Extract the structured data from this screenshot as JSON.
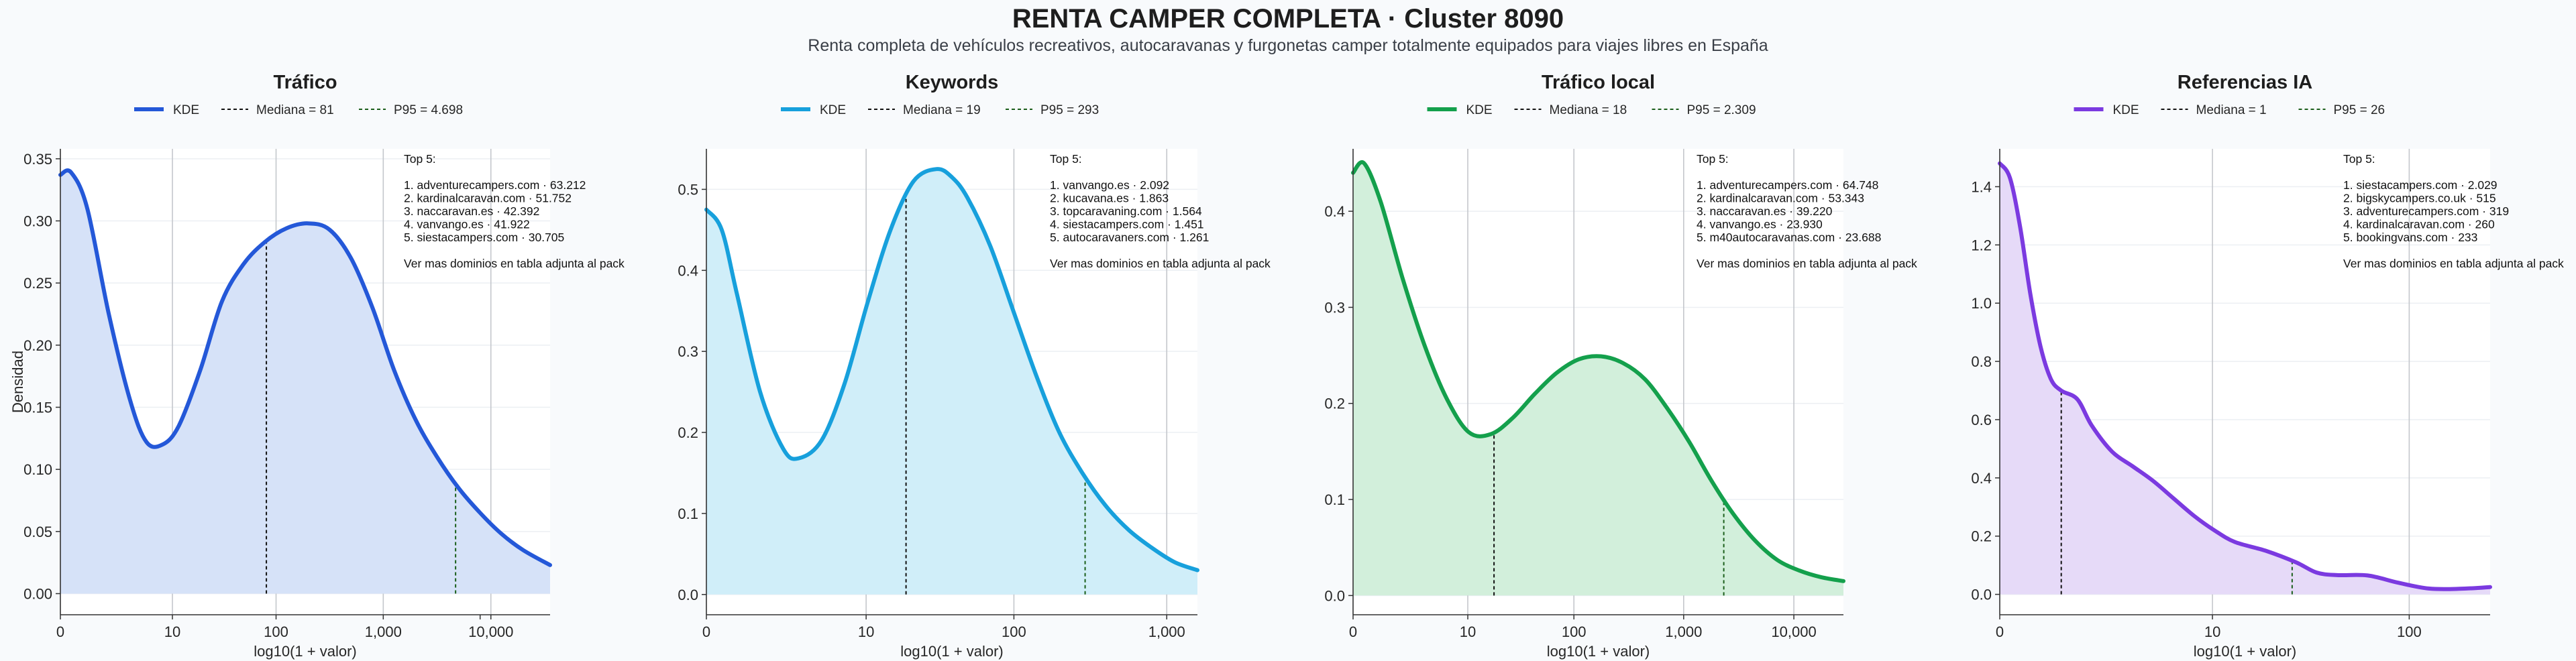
{
  "title": "RENTA CAMPER COMPLETA · Cluster 8090",
  "subtitle": "Renta completa de vehículos recreativos, autocaravanas y furgonetas camper totalmente equipados para viajes libres en España",
  "chart_data": [
    {
      "type": "area",
      "title": "Tráfico",
      "xlabel": "log10(1 + valor)",
      "ylabel": "Densidad",
      "color": "#2458d8",
      "fill": "#d6e2f8",
      "xlim": [
        0,
        4.55
      ],
      "ylim": [
        -0.017,
        0.358
      ],
      "yticks": [
        0.0,
        0.05,
        0.1,
        0.15,
        0.2,
        0.25,
        0.3,
        0.35
      ],
      "ytick_labels": [
        "0.00",
        "0.05",
        "0.10",
        "0.15",
        "0.20",
        "0.25",
        "0.30",
        "0.35"
      ],
      "xticks": [
        0,
        1.041,
        2.004,
        3.0,
        3.9,
        4.0
      ],
      "xtick_labels": [
        "0",
        "10",
        "100",
        "1,000",
        "",
        "10,000"
      ],
      "legend": [
        "KDE",
        "Mediana = 81",
        "P95 = 4.698"
      ],
      "median_log": 1.914,
      "p95_log": 3.672,
      "kde": {
        "x": [
          0,
          0.1,
          0.25,
          0.45,
          0.65,
          0.8,
          0.95,
          1.1,
          1.3,
          1.5,
          1.7,
          1.9,
          2.1,
          2.3,
          2.5,
          2.7,
          2.9,
          3.1,
          3.3,
          3.5,
          3.7,
          3.9,
          4.1,
          4.3,
          4.55
        ],
        "y": [
          0.337,
          0.339,
          0.31,
          0.225,
          0.155,
          0.122,
          0.12,
          0.135,
          0.18,
          0.235,
          0.265,
          0.283,
          0.294,
          0.298,
          0.293,
          0.27,
          0.23,
          0.18,
          0.14,
          0.11,
          0.085,
          0.065,
          0.048,
          0.035,
          0.023
        ]
      },
      "top5_title": "Top 5:",
      "top5": [
        "1. adventurecampers.com · 63.212",
        "2. kardinalcaravan.com · 51.752",
        "3. naccaravan.es · 42.392",
        "4. vanvango.es · 41.922",
        "5. siestacampers.com · 30.705"
      ],
      "footer_note": "Ver mas dominios en tabla adjunta al pack"
    },
    {
      "type": "area",
      "title": "Keywords",
      "xlabel": "log10(1 + valor)",
      "ylabel": "",
      "color": "#17a0dc",
      "fill": "#d0eef9",
      "xlim": [
        0,
        3.2
      ],
      "ylim": [
        -0.025,
        0.55
      ],
      "yticks": [
        0.0,
        0.1,
        0.2,
        0.3,
        0.4,
        0.5
      ],
      "ytick_labels": [
        "0.0",
        "0.1",
        "0.2",
        "0.3",
        "0.4",
        "0.5"
      ],
      "xticks": [
        0,
        1.041,
        2.004,
        3.0
      ],
      "xtick_labels": [
        "0",
        "10",
        "100",
        "1,000"
      ],
      "legend": [
        "KDE",
        "Mediana = 19",
        "P95 = 293"
      ],
      "median_log": 1.301,
      "p95_log": 2.468,
      "kde": {
        "x": [
          0,
          0.1,
          0.2,
          0.35,
          0.5,
          0.6,
          0.75,
          0.9,
          1.05,
          1.2,
          1.35,
          1.5,
          1.6,
          1.7,
          1.85,
          2.0,
          2.15,
          2.3,
          2.45,
          2.6,
          2.75,
          2.9,
          3.05,
          3.2
        ],
        "y": [
          0.475,
          0.45,
          0.37,
          0.25,
          0.18,
          0.168,
          0.19,
          0.26,
          0.36,
          0.45,
          0.51,
          0.525,
          0.515,
          0.49,
          0.43,
          0.35,
          0.27,
          0.2,
          0.15,
          0.11,
          0.08,
          0.058,
          0.04,
          0.03
        ]
      },
      "top5_title": "Top 5:",
      "top5": [
        "1. vanvango.es · 2.092",
        "2. kucavana.es · 1.863",
        "3. topcaravaning.com · 1.564",
        "4. siestacampers.com · 1.451",
        "5. autocaravaners.com · 1.261"
      ],
      "footer_note": "Ver mas dominios en tabla adjunta al pack"
    },
    {
      "type": "area",
      "title": "Tráfico local",
      "xlabel": "log10(1 + valor)",
      "ylabel": "",
      "color": "#14a04c",
      "fill": "#d2efdb",
      "xlim": [
        0,
        4.45
      ],
      "ylim": [
        -0.02,
        0.465
      ],
      "yticks": [
        0.0,
        0.1,
        0.2,
        0.3,
        0.4
      ],
      "ytick_labels": [
        "0.0",
        "0.1",
        "0.2",
        "0.3",
        "0.4"
      ],
      "xticks": [
        0,
        1.041,
        2.004,
        3.0,
        4.0
      ],
      "xtick_labels": [
        "0",
        "10",
        "100",
        "1,000",
        "10,000"
      ],
      "legend": [
        "KDE",
        "Mediana = 18",
        "P95 = 2.309"
      ],
      "median_log": 1.279,
      "p95_log": 3.364,
      "kde": {
        "x": [
          0,
          0.1,
          0.25,
          0.45,
          0.65,
          0.85,
          1.05,
          1.25,
          1.45,
          1.65,
          1.85,
          2.05,
          2.25,
          2.45,
          2.65,
          2.85,
          3.05,
          3.25,
          3.45,
          3.65,
          3.85,
          4.05,
          4.25,
          4.45
        ],
        "y": [
          0.44,
          0.45,
          0.41,
          0.33,
          0.26,
          0.205,
          0.17,
          0.168,
          0.185,
          0.21,
          0.232,
          0.246,
          0.249,
          0.242,
          0.225,
          0.195,
          0.16,
          0.12,
          0.085,
          0.057,
          0.037,
          0.026,
          0.019,
          0.015
        ]
      },
      "top5_title": "Top 5:",
      "top5": [
        "1. adventurecampers.com · 64.748",
        "2. kardinalcaravan.com · 53.343",
        "3. naccaravan.es · 39.220",
        "4. vanvango.es · 23.930",
        "5. m40autocaravanas.com · 23.688"
      ],
      "footer_note": "Ver mas dominios en tabla adjunta al pack"
    },
    {
      "type": "area",
      "title": "Referencias IA",
      "xlabel": "log10(1 + valor)",
      "ylabel": "",
      "color": "#7b3ae0",
      "fill": "#e6daf8",
      "xlim": [
        0,
        2.4
      ],
      "ylim": [
        -0.07,
        1.53
      ],
      "yticks": [
        0.0,
        0.2,
        0.4,
        0.6,
        0.8,
        1.0,
        1.2,
        1.4
      ],
      "ytick_labels": [
        "0.0",
        "0.2",
        "0.4",
        "0.6",
        "0.8",
        "1.0",
        "1.2",
        "1.4"
      ],
      "xticks": [
        0,
        1.041,
        2.004
      ],
      "xtick_labels": [
        "0",
        "10",
        "100"
      ],
      "legend": [
        "KDE",
        "Mediana = 1",
        "P95 = 26"
      ],
      "median_log": 0.301,
      "p95_log": 1.431,
      "kde": {
        "x": [
          0,
          0.05,
          0.1,
          0.15,
          0.2,
          0.25,
          0.3,
          0.38,
          0.45,
          0.55,
          0.65,
          0.75,
          0.85,
          0.95,
          1.05,
          1.15,
          1.3,
          1.45,
          1.55,
          1.65,
          1.8,
          1.95,
          2.1,
          2.25,
          2.4
        ],
        "y": [
          1.48,
          1.43,
          1.26,
          1.03,
          0.85,
          0.74,
          0.7,
          0.67,
          0.58,
          0.49,
          0.44,
          0.39,
          0.33,
          0.27,
          0.22,
          0.18,
          0.15,
          0.11,
          0.075,
          0.066,
          0.065,
          0.04,
          0.02,
          0.019,
          0.025
        ]
      },
      "top5_title": "Top 5:",
      "top5": [
        "1. siestacampers.com · 2.029",
        "2. bigskycampers.co.uk · 515",
        "3. adventurecampers.com · 319",
        "4. kardinalcaravan.com · 260",
        "5. bookingvans.com · 233"
      ],
      "footer_note": "Ver mas dominios en tabla adjunta al pack"
    }
  ]
}
